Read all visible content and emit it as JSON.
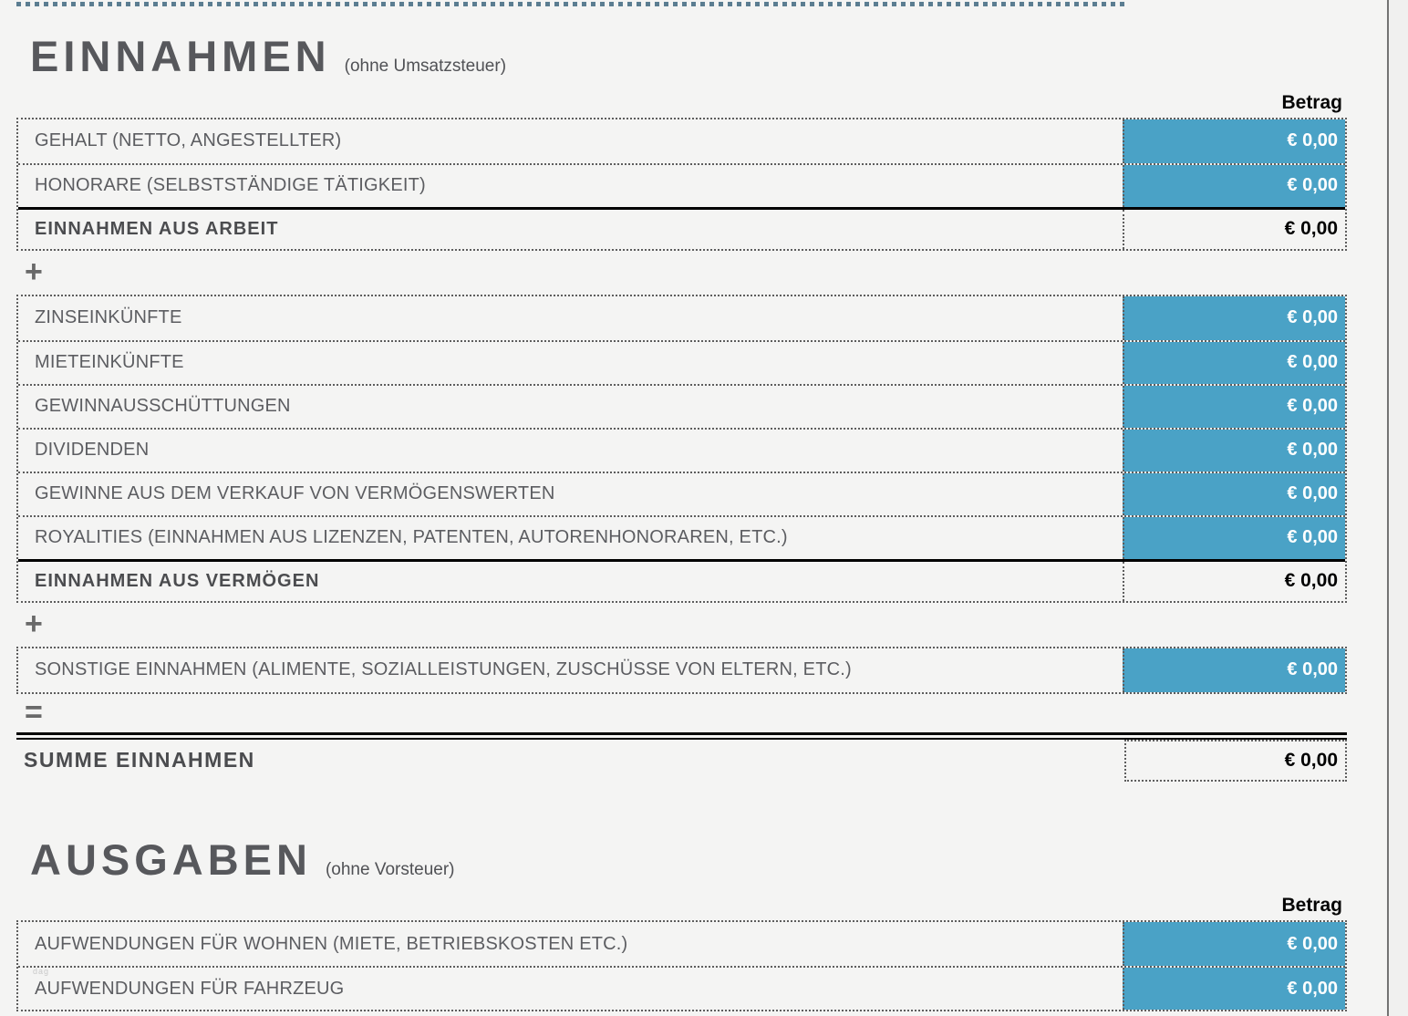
{
  "colors": {
    "input_cell_blue": "#4AA2C6",
    "page_background": "#F4F4F3",
    "label_gray": "#5C5D61",
    "page_break_dash": "#5B7D91",
    "page_edge_line": "#737373"
  },
  "income": {
    "title": "EINNAHMEN",
    "subtitle": "(ohne Umsatzsteuer)",
    "amount_header": "Betrag",
    "work_rows": [
      {
        "label": "GEHALT (NETTO, ANGESTELLTER)",
        "value": "€ 0,00"
      },
      {
        "label": "HONORARE (SELBSTSTÄNDIGE TÄTIGKEIT)",
        "value": "€ 0,00"
      }
    ],
    "work_subtotal": {
      "label": "EINNAHMEN AUS ARBEIT",
      "value": "€ 0,00"
    },
    "operator_1": "+",
    "asset_rows": [
      {
        "label": "ZINSEINKÜNFTE",
        "value": "€ 0,00"
      },
      {
        "label": "MIETEINKÜNFTE",
        "value": "€ 0,00"
      },
      {
        "label": "GEWINNAUSSCHÜTTUNGEN",
        "value": "€ 0,00"
      },
      {
        "label": "DIVIDENDEN",
        "value": "€ 0,00"
      },
      {
        "label": "GEWINNE AUS DEM VERKAUF VON VERMÖGENSWERTEN",
        "value": "€ 0,00"
      },
      {
        "label": "ROYALITIES (EINNAHMEN AUS LIZENZEN, PATENTEN, AUTORENHONORAREN, ETC.)",
        "value": "€ 0,00"
      }
    ],
    "asset_subtotal": {
      "label": "EINNAHMEN AUS VERMÖGEN",
      "value": "€ 0,00"
    },
    "operator_2": "+",
    "other_rows": [
      {
        "label": "SONSTIGE EINNAHMEN (ALIMENTE, SOZIALLEISTUNGEN, ZUSCHÜSSE VON ELTERN, ETC.)",
        "value": "€ 0,00"
      }
    ],
    "operator_3": "=",
    "total": {
      "label": "SUMME EINNAHMEN",
      "value": "€ 0,00"
    }
  },
  "expenses": {
    "title": "AUSGABEN",
    "subtitle": "(ohne Vorsteuer)",
    "amount_header": "Betrag",
    "rows": [
      {
        "label": "AUFWENDUNGEN FÜR WOHNEN (MIETE, BETRIEBSKOSTEN ETC.)",
        "value": "€ 0,00"
      },
      {
        "label": "AUFWENDUNGEN FÜR FAHRZEUG",
        "value": "€ 0,00"
      }
    ],
    "faint_note": "dag"
  }
}
